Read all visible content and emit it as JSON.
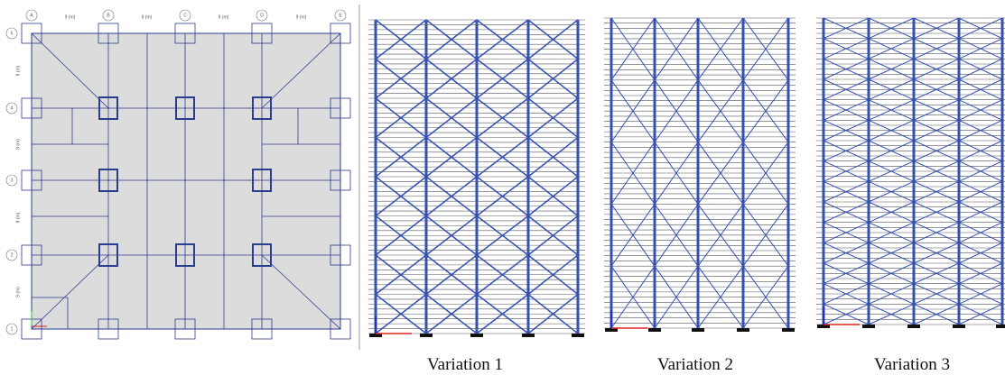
{
  "plan": {
    "column_labels": [
      "A",
      "B",
      "C",
      "D",
      "E"
    ],
    "row_labels": [
      "5",
      "4",
      "3",
      "2",
      "1"
    ],
    "span_labels": [
      "9 (m)",
      "9 (m)",
      "9 (m)",
      "9 (m)"
    ],
    "row_span_labels": [
      "9 (m)",
      "9 (m)",
      "9 (m)",
      "9 (m)"
    ]
  },
  "elevations": [
    {
      "caption": "Variation 1"
    },
    {
      "caption": "Variation 2"
    },
    {
      "caption": "Variation 3"
    }
  ]
}
